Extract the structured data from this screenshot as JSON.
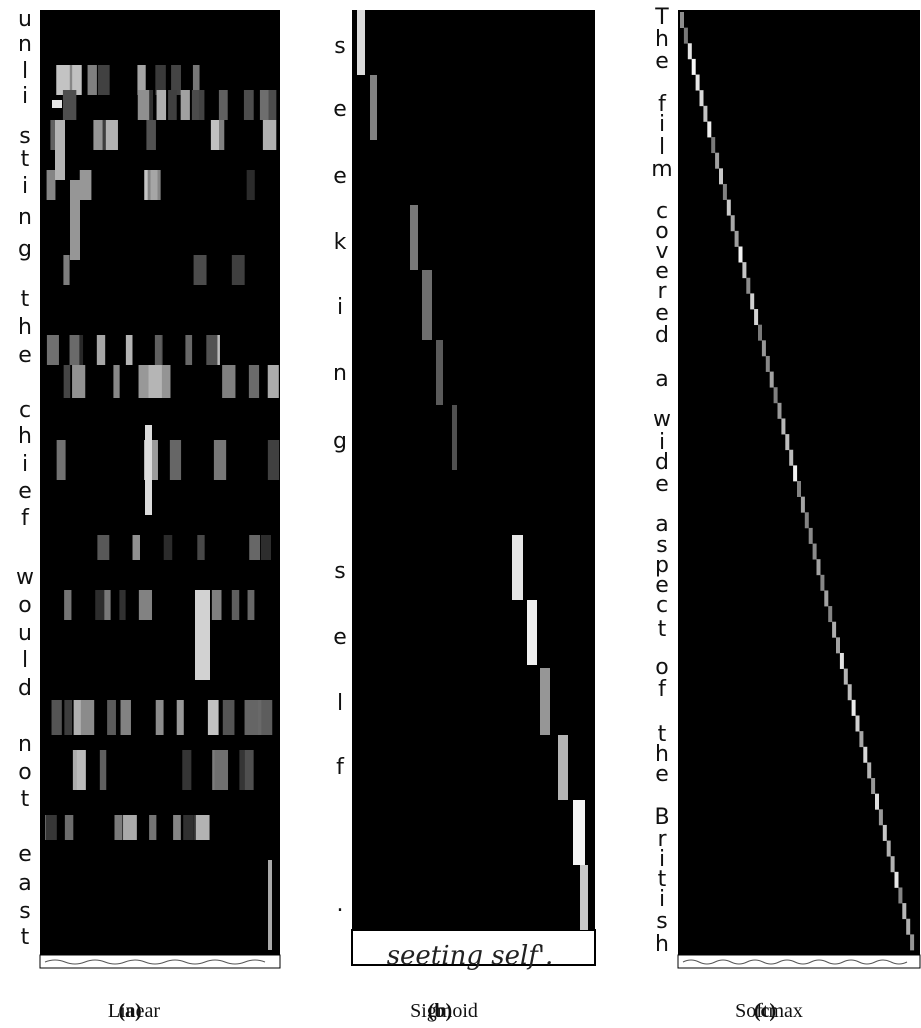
{
  "panels": [
    {
      "label": "(a)",
      "caption": "Linear",
      "characters": [
        "u",
        "n",
        "l",
        "i",
        "s",
        "t",
        "i",
        "n",
        "g",
        "t",
        "h",
        "e",
        "c",
        "h",
        "i",
        "e",
        "f",
        "w",
        "o",
        "u",
        "l",
        "d",
        "n",
        "o",
        "t",
        "e",
        "a",
        "s",
        "t"
      ]
    },
    {
      "label": "(b)",
      "caption": "Sigmoid",
      "characters": [
        "s",
        "e",
        "e",
        "k",
        "i",
        "n",
        "g",
        "s",
        "e",
        "l",
        "f",
        "."
      ],
      "handwriting": "seeting self'."
    },
    {
      "label": "(c)",
      "caption": "Softmax",
      "characters": [
        "T",
        "h",
        "e",
        "f",
        "i",
        "l",
        "m",
        "c",
        "o",
        "v",
        "e",
        "r",
        "e",
        "d",
        "a",
        "w",
        "i",
        "d",
        "e",
        "a",
        "s",
        "p",
        "e",
        "c",
        "t",
        "o",
        "f",
        "t",
        "h",
        "e",
        "B",
        "r",
        "i",
        "t",
        "i",
        "s",
        "h"
      ]
    }
  ]
}
